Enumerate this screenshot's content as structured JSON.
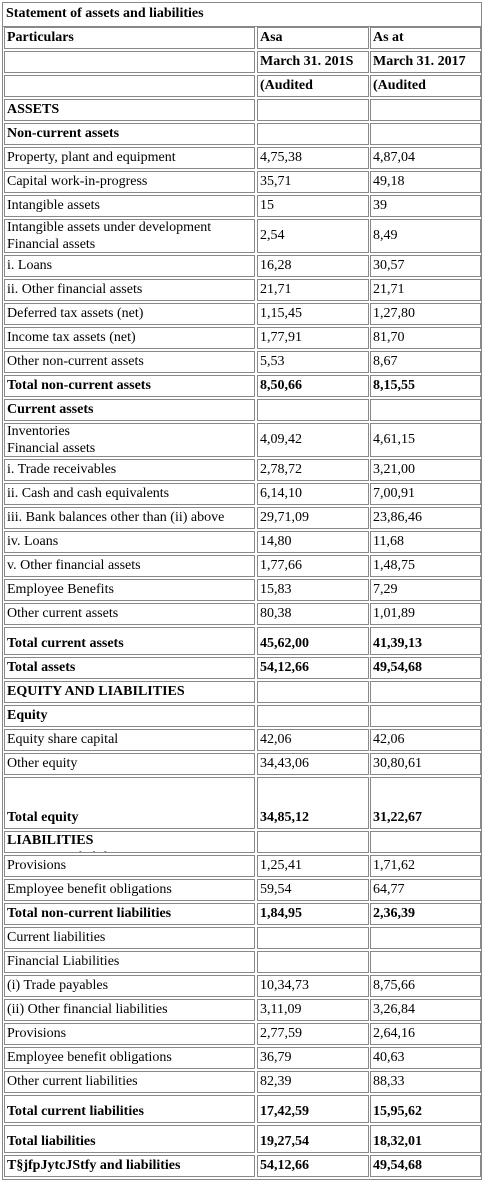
{
  "title": "Statement of assets and liabilities",
  "header": {
    "col1": "Particulars",
    "col2_line1": "Asa",
    "col2_line2": "March 31. 201S",
    "col2_line3": "(Audited",
    "col3_line1": "As at",
    "col3_line2": "March 31. 2017",
    "col3_line3": "(Audited"
  },
  "rows": [
    {
      "label": "ASSETS",
      "v1": "",
      "v2": ""
    },
    {
      "label": "Non-current assets",
      "v1": "",
      "v2": ""
    },
    {
      "label": "Property, plant and equipment",
      "v1": "4,75,38",
      "v2": "4,87,04"
    },
    {
      "label": "Capital work-in-progress",
      "v1": "35,71",
      "v2": "49,18"
    },
    {
      "label": "Intangible assets",
      "v1": "15",
      "v2": "39"
    },
    {
      "label": "Intangible assets under development",
      "label2": "Financial assets",
      "v1": "2,54",
      "v2": "8,49"
    },
    {
      "label": "i. Loans",
      "v1": "16,28",
      "v2": "30,57"
    },
    {
      "label": "ii. Other financial assets",
      "v1": "21,71",
      "v2": "21,71"
    },
    {
      "label": "Deferred tax assets (net)",
      "v1": "1,15,45",
      "v2": "1,27,80"
    },
    {
      "label": "Income tax assets (net)",
      "v1": "1,77,91",
      "v2": "81,70"
    },
    {
      "label": "Other non-current assets",
      "v1": "5,53",
      "v2": "8,67"
    },
    {
      "label": "Total non-current assets",
      "v1": "8,50,66",
      "v2": "8,15,55"
    },
    {
      "label": "Current assets",
      "v1": "",
      "v2": ""
    },
    {
      "label": "Inventories",
      "label2": "Financial assets",
      "v1": "4,09,42",
      "v2": "4,61,15"
    },
    {
      "label": "i. Trade receivables",
      "v1": "2,78,72",
      "v2": "3,21,00"
    },
    {
      "label": "ii. Cash and cash equivalents",
      "v1": "6,14,10",
      "v2": "7,00,91"
    },
    {
      "label": "iii. Bank balances other than (ii) above",
      "v1": "29,71,09",
      "v2": "23,86,46"
    },
    {
      "label": "iv. Loans",
      "v1": "14,80",
      "v2": "11,68"
    },
    {
      "label": "v. Other financial assets",
      "v1": "1,77,66",
      "v2": "1,48,75"
    },
    {
      "label": "Employee Benefits",
      "v1": "15,83",
      "v2": "7,29"
    },
    {
      "label": "Other current assets",
      "v1": "80,38",
      "v2": "1,01,89"
    },
    {
      "label": "Total current assets",
      "v1": "45,62,00",
      "v2": "41,39,13"
    },
    {
      "label": "Total assets",
      "v1": "54,12,66",
      "v2": "49,54,68"
    },
    {
      "label": "EQUITY AND LIABILITIES",
      "v1": "",
      "v2": ""
    },
    {
      "label": "Equity",
      "v1": "",
      "v2": ""
    },
    {
      "label": "Equity share capital",
      "v1": "42,06",
      "v2": "42,06"
    },
    {
      "label": "Other equity",
      "v1": "34,43,06",
      "v2": "30,80,61"
    },
    {
      "label": "Total equity",
      "v1": "34,85,12",
      "v2": "31,22,67"
    },
    {
      "label": "LIABILITIES",
      "label2": "Non-current liabilities",
      "v1": "",
      "v2": ""
    },
    {
      "label": "Provisions",
      "v1": "1,25,41",
      "v2": "1,71,62"
    },
    {
      "label": "Employee benefit obligations",
      "v1": "59,54",
      "v2": "64,77"
    },
    {
      "label": "Total non-current liabilities",
      "v1": "1,84,95",
      "v2": "2,36,39"
    },
    {
      "label": "Current liabilities",
      "v1": "",
      "v2": ""
    },
    {
      "label": "Financial Liabilities",
      "v1": "",
      "v2": ""
    },
    {
      "label": "(i) Trade payables",
      "v1": "10,34,73",
      "v2": "8,75,66"
    },
    {
      "label": "(ii) Other financial liabilities",
      "v1": "3,11,09",
      "v2": "3,26,84"
    },
    {
      "label": "Provisions",
      "v1": "2,77,59",
      "v2": "2,64,16"
    },
    {
      "label": "Employee benefit obligations",
      "v1": "36,79",
      "v2": "40,63"
    },
    {
      "label": "Other current liabilities",
      "v1": "82,39",
      "v2": "88,33"
    },
    {
      "label": "Total current liabilities",
      "v1": "17,42,59",
      "v2": "15,95,62"
    },
    {
      "label": "Total liabilities",
      "v1": "19,27,54",
      "v2": "18,32,01"
    },
    {
      "label": "T§jfpJytcJStfy and liabilities",
      "v1": "54,12,66",
      "v2": "49,54,68"
    }
  ]
}
